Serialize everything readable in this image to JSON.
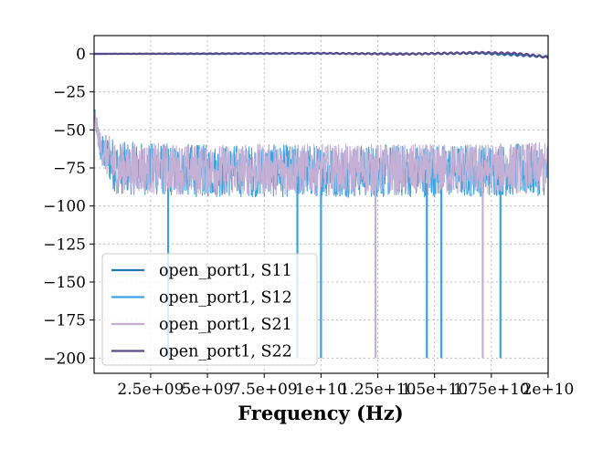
{
  "chart_data": {
    "type": "line",
    "title": "",
    "xlabel": "Frequency (Hz)",
    "ylabel": "",
    "xlim": [
      10000000,
      20000000000
    ],
    "ylim": [
      -210,
      12
    ],
    "grid": true,
    "legend_position": "lower-left",
    "x_ticks": [
      {
        "value": 2500000000,
        "label": "2.5e+09"
      },
      {
        "value": 5000000000,
        "label": "5e+09"
      },
      {
        "value": 7500000000,
        "label": "7.5e+09"
      },
      {
        "value": 10000000000,
        "label": "1e+10"
      },
      {
        "value": 12500000000,
        "label": "1.25e+10"
      },
      {
        "value": 15000000000,
        "label": "1.5e+10"
      },
      {
        "value": 17500000000,
        "label": "1.75e+10"
      },
      {
        "value": 20000000000,
        "label": "2e+10"
      }
    ],
    "y_ticks": [
      {
        "value": 0,
        "label": "0"
      },
      {
        "value": -25,
        "label": "−25"
      },
      {
        "value": -50,
        "label": "−50"
      },
      {
        "value": -75,
        "label": "−75"
      },
      {
        "value": -100,
        "label": "−100"
      },
      {
        "value": -125,
        "label": "−125"
      },
      {
        "value": -150,
        "label": "−150"
      },
      {
        "value": -175,
        "label": "−175"
      },
      {
        "value": -200,
        "label": "−200"
      }
    ],
    "series": [
      {
        "name": "open_port1, S11",
        "color": "#1f77b4",
        "style": "near_zero",
        "points": [
          [
            10000000,
            0
          ],
          [
            5000000000,
            0
          ],
          [
            10000000000,
            0.3
          ],
          [
            14000000000,
            0
          ],
          [
            17000000000,
            0.5
          ],
          [
            19000000000,
            -1
          ],
          [
            20000000000,
            -2
          ]
        ]
      },
      {
        "name": "open_port1, S12",
        "color": "#3ca3e0",
        "style": "noise",
        "points": [
          [
            10000000,
            -40
          ],
          [
            300000000,
            -62
          ],
          [
            1000000000,
            -75
          ],
          [
            5000000000,
            -77
          ],
          [
            10000000000,
            -77
          ],
          [
            15000000000,
            -77
          ],
          [
            20000000000,
            -76
          ]
        ],
        "band": [
          -95,
          -60
        ],
        "drops": [
          [
            3270000000,
            -200
          ],
          [
            8960000000,
            -200
          ],
          [
            10000000000,
            -200
          ],
          [
            14660000000,
            -200
          ],
          [
            15300000000,
            -200
          ],
          [
            17900000000,
            -200
          ]
        ]
      },
      {
        "name": "open_port1, S21",
        "color": "#c5b0d5",
        "style": "noise",
        "points": [
          [
            10000000,
            -40
          ],
          [
            300000000,
            -62
          ],
          [
            1000000000,
            -75
          ],
          [
            5000000000,
            -76
          ],
          [
            10000000000,
            -76
          ],
          [
            15000000000,
            -76
          ],
          [
            20000000000,
            -75
          ]
        ],
        "band": [
          -92,
          -58
        ],
        "drops": [
          [
            12400000000,
            -200
          ],
          [
            17120000000,
            -200
          ]
        ]
      },
      {
        "name": "open_port1, S22",
        "color": "#5b4a8b",
        "style": "near_zero",
        "points": [
          [
            10000000,
            0
          ],
          [
            5000000000,
            0.2
          ],
          [
            10000000000,
            0.4
          ],
          [
            13500000000,
            -0.2
          ],
          [
            17000000000,
            0.8
          ],
          [
            18500000000,
            0.3
          ],
          [
            19500000000,
            -1.2
          ],
          [
            20000000000,
            -2.5
          ]
        ]
      }
    ]
  }
}
